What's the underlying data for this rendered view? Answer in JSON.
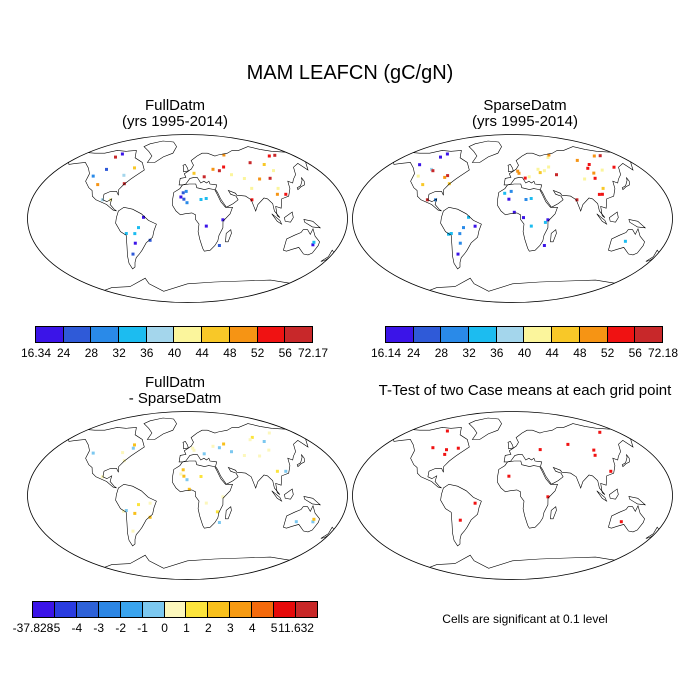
{
  "title": "MAM LEAFCN (gC/gN)",
  "panels": [
    {
      "id": "full",
      "title_line1": "FullDatm",
      "title_line2": "(yrs 1995-2014)",
      "type": "values"
    },
    {
      "id": "sparse",
      "title_line1": "SparseDatm",
      "title_line2": "(yrs 1995-2014)",
      "type": "values"
    },
    {
      "id": "diff",
      "title_line1": "FullDatm",
      "title_line2": "- SparseDatm",
      "type": "difference"
    },
    {
      "id": "ttest",
      "title_line1": "T-Test of two Case means at each grid point",
      "title_line2": "",
      "type": "significance"
    }
  ],
  "colorbars": {
    "full": {
      "colors": [
        "#3b14e8",
        "#2f5ad8",
        "#2a8ae8",
        "#1cbcf0",
        "#a4d6ec",
        "#fbf59c",
        "#f8c828",
        "#f69414",
        "#f01212",
        "#c8282a"
      ],
      "labels": [
        "16.34",
        "24",
        "28",
        "32",
        "36",
        "40",
        "44",
        "48",
        "52",
        "56",
        "72.17"
      ]
    },
    "sparse": {
      "colors": [
        "#3b14e8",
        "#2f5ad8",
        "#2a8ae8",
        "#1cbcf0",
        "#a4d6ec",
        "#fbf59c",
        "#f8c828",
        "#f69414",
        "#f01212",
        "#c8282a"
      ],
      "labels": [
        "16.14",
        "24",
        "28",
        "32",
        "36",
        "40",
        "44",
        "48",
        "52",
        "56",
        "72.18"
      ]
    },
    "diff": {
      "colors": [
        "#3b14e8",
        "#2a3ce0",
        "#2e62d8",
        "#2c86e4",
        "#3aa4ee",
        "#7cc8f0",
        "#fcf7bc",
        "#fce43c",
        "#f8c01c",
        "#f69a12",
        "#f46a0c",
        "#e60a0a",
        "#c82828"
      ],
      "labels": [
        "-37.828",
        "-5",
        "-4",
        "-3",
        "-2",
        "-1",
        "0",
        "1",
        "2",
        "3",
        "4",
        "5",
        "11.632"
      ]
    }
  },
  "significance_note": "Cells are significant at 0.1 level",
  "marker_colors": {
    "significant": "#f01212",
    "coast": "#000000"
  }
}
